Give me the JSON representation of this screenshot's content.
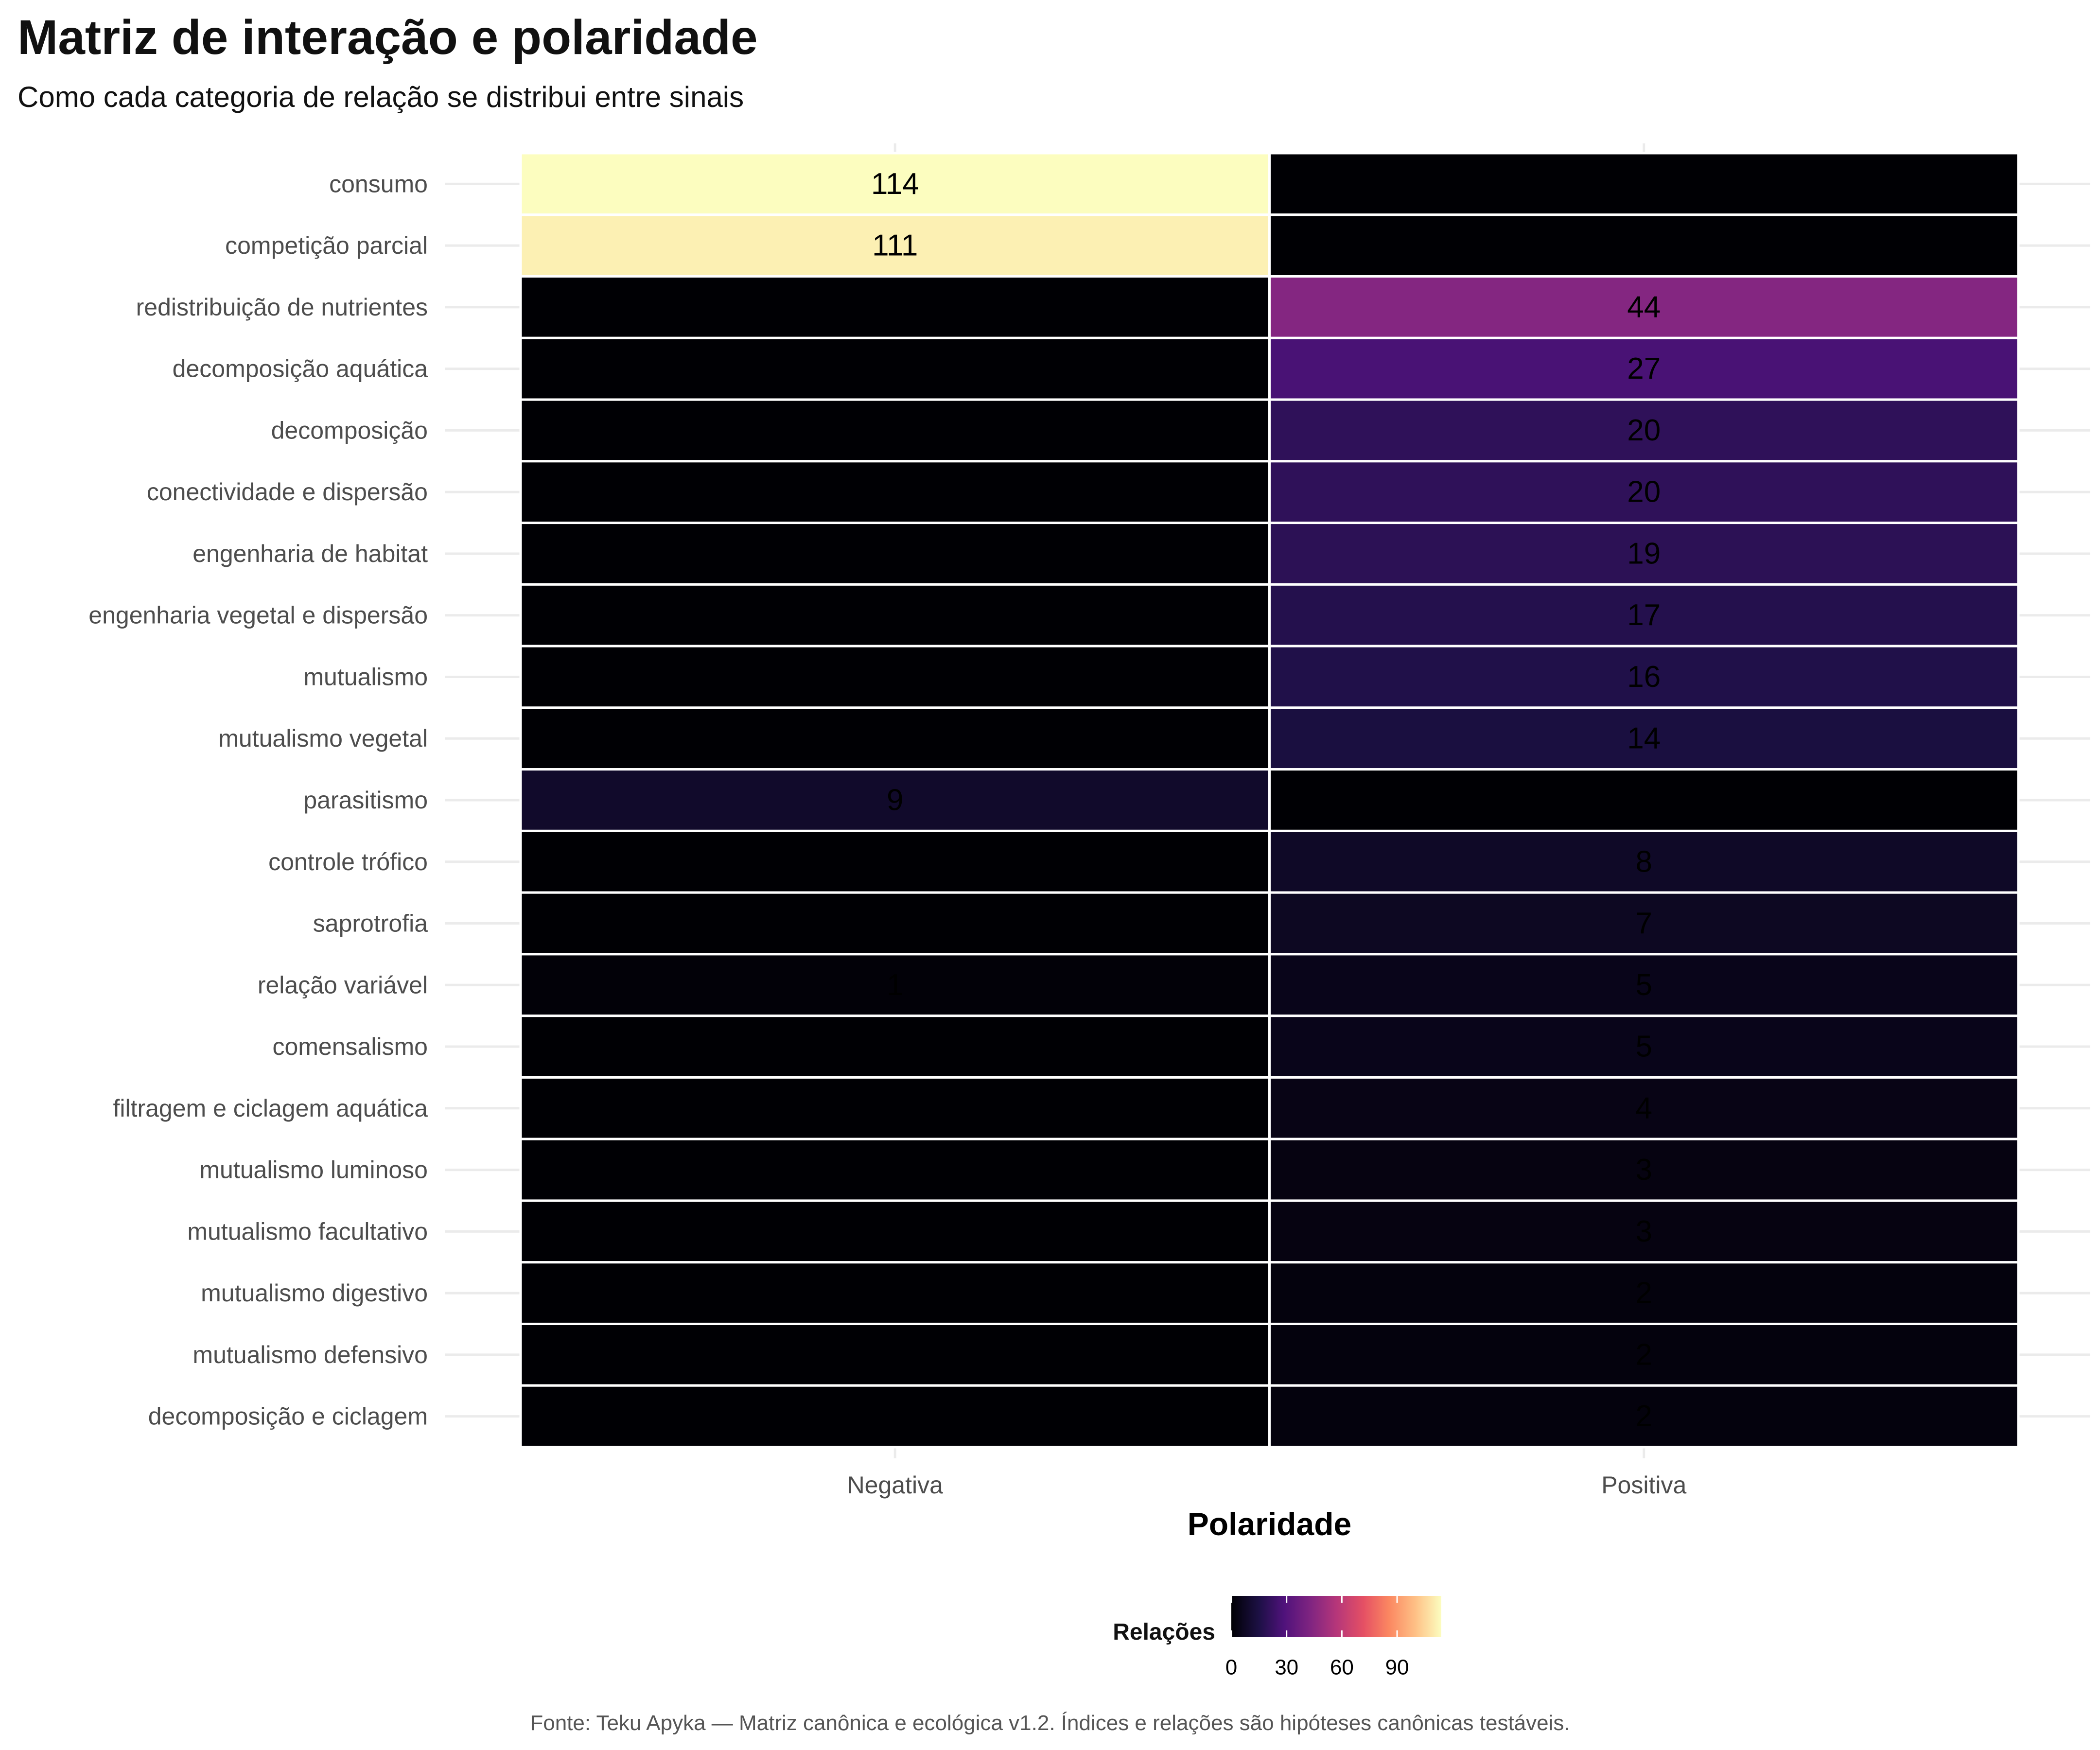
{
  "title": "Matriz de interação e polaridade",
  "subtitle": "Como cada categoria de relação se distribui entre sinais",
  "caption": "Fonte: Teku Apyka — Matriz canônica e ecológica v1.2. Índices e relações são hipóteses canônicas testáveis.",
  "chart_data": {
    "type": "heatmap",
    "xlabel": "Polaridade",
    "ylabel": "",
    "x": [
      "Negativa",
      "Positiva"
    ],
    "y": [
      "consumo",
      "competição parcial",
      "redistribuição de nutrientes",
      "decomposição aquática",
      "decomposição",
      "conectividade e dispersão",
      "engenharia de habitat",
      "engenharia vegetal e dispersão",
      "mutualismo",
      "mutualismo vegetal",
      "parasitismo",
      "controle trófico",
      "saprotrofia",
      "relação variável",
      "comensalismo",
      "filtragem e ciclagem aquática",
      "mutualismo luminoso",
      "mutualismo facultativo",
      "mutualismo digestivo",
      "mutualismo defensivo",
      "decomposição e ciclagem"
    ],
    "values": [
      [
        114,
        0
      ],
      [
        111,
        0
      ],
      [
        0,
        44
      ],
      [
        0,
        27
      ],
      [
        0,
        20
      ],
      [
        0,
        20
      ],
      [
        0,
        19
      ],
      [
        0,
        17
      ],
      [
        0,
        16
      ],
      [
        0,
        14
      ],
      [
        9,
        0
      ],
      [
        0,
        8
      ],
      [
        0,
        7
      ],
      [
        1,
        5
      ],
      [
        0,
        5
      ],
      [
        0,
        4
      ],
      [
        0,
        3
      ],
      [
        0,
        3
      ],
      [
        0,
        2
      ],
      [
        0,
        2
      ],
      [
        0,
        2
      ]
    ],
    "labels": [
      [
        "114",
        ""
      ],
      [
        "111",
        ""
      ],
      [
        "",
        "44"
      ],
      [
        "",
        "27"
      ],
      [
        "",
        "20"
      ],
      [
        "",
        "20"
      ],
      [
        "",
        "19"
      ],
      [
        "",
        "17"
      ],
      [
        "",
        "16"
      ],
      [
        "",
        "14"
      ],
      [
        "9",
        ""
      ],
      [
        "",
        "8"
      ],
      [
        "",
        "7"
      ],
      [
        "1",
        "5"
      ],
      [
        "",
        "5"
      ],
      [
        "",
        "4"
      ],
      [
        "",
        "3"
      ],
      [
        "",
        "3"
      ],
      [
        "",
        "2"
      ],
      [
        "",
        "2"
      ],
      [
        "",
        "2"
      ]
    ],
    "legend": {
      "title": "Relações",
      "ticks": [
        0,
        30,
        60,
        90
      ],
      "range": [
        0,
        114
      ],
      "palette": "magma",
      "position": "bottom"
    },
    "grid": true
  }
}
